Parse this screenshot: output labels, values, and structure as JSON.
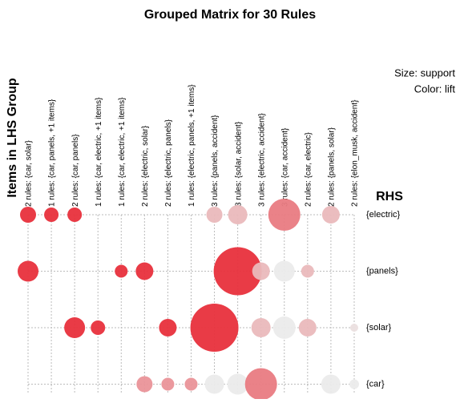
{
  "chart_data": {
    "type": "bubble",
    "title": "Grouped Matrix for 30 Rules",
    "x_label": "Items in LHS Group",
    "y_label": "RHS",
    "size_legend": "Size: support",
    "color_legend": "Color: lift",
    "color_low": "#ebebeb",
    "color_high": "#e8303c",
    "columns": [
      "2 rules: {car, solar}",
      "1 rules: {car, panels, +1 items}",
      "2 rules: {car, panels}",
      "1 rules: {car, electric, +1 items}",
      "1 rules: {car, electric, +1 items}",
      "2 rules: {electric, solar}",
      "2 rules: {electric, panels}",
      "1 rules: {electric, panels, +1 items}",
      "3 rules: {panels, accident}",
      "3 rules: {solar, accident}",
      "3 rules: {electric, accident}",
      "3 rules: {car, accident}",
      "2 rules: {car, electric}",
      "2 rules: {panels, solar}",
      "2 rules: {elon_musk, accident}"
    ],
    "rows": [
      "{electric}",
      "{panels}",
      "{solar}",
      "{car}"
    ],
    "points": [
      {
        "col": 0,
        "row": 0,
        "support": 0.01,
        "lift": 2.5
      },
      {
        "col": 1,
        "row": 0,
        "support": 0.0081,
        "lift": 2.5
      },
      {
        "col": 2,
        "row": 0,
        "support": 0.0081,
        "lift": 2.5
      },
      {
        "col": 8,
        "row": 0,
        "support": 0.01,
        "lift": 1.4
      },
      {
        "col": 9,
        "row": 0,
        "support": 0.0144,
        "lift": 1.4
      },
      {
        "col": 11,
        "row": 0,
        "support": 0.04,
        "lift": 1.9
      },
      {
        "col": 13,
        "row": 0,
        "support": 0.0121,
        "lift": 1.4
      },
      {
        "col": 0,
        "row": 1,
        "support": 0.0169,
        "lift": 2.5
      },
      {
        "col": 4,
        "row": 1,
        "support": 0.0064,
        "lift": 2.5
      },
      {
        "col": 5,
        "row": 1,
        "support": 0.0121,
        "lift": 2.5
      },
      {
        "col": 9,
        "row": 1,
        "support": 0.09,
        "lift": 2.5
      },
      {
        "col": 10,
        "row": 1,
        "support": 0.0121,
        "lift": 1.4
      },
      {
        "col": 11,
        "row": 1,
        "support": 0.0169,
        "lift": 1.0
      },
      {
        "col": 12,
        "row": 1,
        "support": 0.0064,
        "lift": 1.4
      },
      {
        "col": 2,
        "row": 2,
        "support": 0.0169,
        "lift": 2.5
      },
      {
        "col": 3,
        "row": 2,
        "support": 0.0081,
        "lift": 2.5
      },
      {
        "col": 6,
        "row": 2,
        "support": 0.0121,
        "lift": 2.5
      },
      {
        "col": 8,
        "row": 2,
        "support": 0.09,
        "lift": 2.5
      },
      {
        "col": 10,
        "row": 2,
        "support": 0.0144,
        "lift": 1.4
      },
      {
        "col": 11,
        "row": 2,
        "support": 0.0196,
        "lift": 1.0
      },
      {
        "col": 12,
        "row": 2,
        "support": 0.0121,
        "lift": 1.4
      },
      {
        "col": 14,
        "row": 2,
        "support": 0.0025,
        "lift": 1.1
      },
      {
        "col": 5,
        "row": 3,
        "support": 0.01,
        "lift": 1.7
      },
      {
        "col": 6,
        "row": 3,
        "support": 0.0064,
        "lift": 1.7
      },
      {
        "col": 7,
        "row": 3,
        "support": 0.0064,
        "lift": 1.7
      },
      {
        "col": 8,
        "row": 3,
        "support": 0.0144,
        "lift": 1.0
      },
      {
        "col": 9,
        "row": 3,
        "support": 0.0169,
        "lift": 1.0
      },
      {
        "col": 10,
        "row": 3,
        "support": 0.04,
        "lift": 1.9
      },
      {
        "col": 13,
        "row": 3,
        "support": 0.0144,
        "lift": 1.0
      },
      {
        "col": 14,
        "row": 3,
        "support": 0.0036,
        "lift": 1.0
      }
    ]
  }
}
